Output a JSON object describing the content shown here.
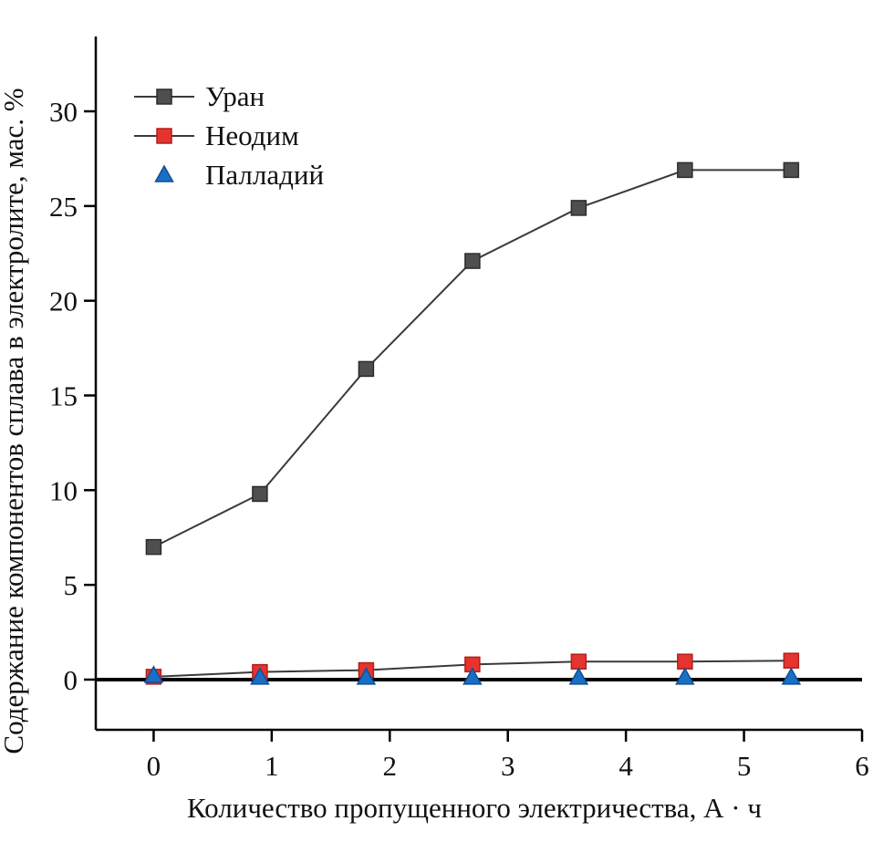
{
  "chart_data": {
    "type": "line",
    "title": "",
    "xlabel": "Количество пропущенного электричества, А · ч",
    "ylabel": "Содержание компонентов сплава в электролите, мас. %",
    "x": [
      0,
      0.9,
      1.8,
      2.7,
      3.6,
      4.5,
      5.4
    ],
    "series": [
      {
        "name": "Уран",
        "marker": "square",
        "line": true,
        "color": "#4f4f4f",
        "edge": "#2b2b2b",
        "line_color": "#3a3a3a",
        "values": [
          7.0,
          9.8,
          16.4,
          22.1,
          24.9,
          26.9,
          26.9
        ]
      },
      {
        "name": "Неодим",
        "marker": "square",
        "line": true,
        "color": "#e5332e",
        "edge": "#b2201c",
        "line_color": "#3a3a3a",
        "values": [
          0.15,
          0.4,
          0.5,
          0.8,
          0.95,
          0.95,
          1.0
        ]
      },
      {
        "name": "Палладий",
        "marker": "triangle",
        "line": false,
        "color": "#1a6fc4",
        "edge": "#0e4f95",
        "line_color": "#1a6fc4",
        "values": [
          0.2,
          0.1,
          0.1,
          0.1,
          0.1,
          0.1,
          0.1
        ]
      }
    ],
    "xlim": [
      -0.49,
      6
    ],
    "ylim": [
      -2.65,
      33.95
    ],
    "xticks": [
      0,
      1,
      2,
      3,
      4,
      5,
      6
    ],
    "yticks": [
      0,
      5,
      10,
      15,
      20,
      25,
      30
    ],
    "grid": false,
    "legend_position": "top-left",
    "zero_line": true
  }
}
